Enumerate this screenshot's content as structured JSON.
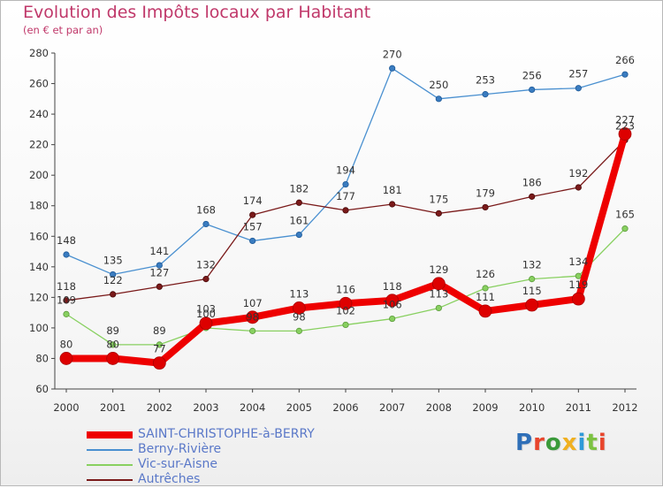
{
  "title": "Evolution des Impôts locaux par Habitant",
  "subtitle": "(en € et par an)",
  "logo": {
    "text": "Proxiti",
    "colors": [
      "#2f6fb8",
      "#e8452c",
      "#3a9a3a",
      "#f0b020",
      "#2f9ad8",
      "#7cc242",
      "#e8452c"
    ]
  },
  "chart_data": {
    "type": "line",
    "categories": [
      "2000",
      "2001",
      "2002",
      "2003",
      "2004",
      "2005",
      "2006",
      "2007",
      "2008",
      "2009",
      "2010",
      "2011",
      "2012"
    ],
    "ylim": [
      60,
      280
    ],
    "yticks": [
      60,
      80,
      100,
      120,
      140,
      160,
      180,
      200,
      220,
      240,
      260,
      280
    ],
    "grid": false,
    "legend_position": "bottom-left",
    "series": [
      {
        "name": "SAINT-CHRISTOPHE-à-BERRY",
        "color": "#ee0000",
        "values": [
          80,
          80,
          77,
          103,
          107,
          113,
          116,
          118,
          129,
          111,
          115,
          119,
          227
        ]
      },
      {
        "name": "Berny-Rivière",
        "color": "#4a90d0",
        "values": [
          148,
          135,
          141,
          168,
          157,
          161,
          194,
          270,
          250,
          253,
          256,
          257,
          266
        ]
      },
      {
        "name": "Vic-sur-Aisne",
        "color": "#88d060",
        "values": [
          109,
          89,
          89,
          100,
          98,
          98,
          102,
          106,
          113,
          126,
          132,
          134,
          165
        ]
      },
      {
        "name": "Autrêches",
        "color": "#7a1a1a",
        "values": [
          118,
          122,
          127,
          132,
          174,
          182,
          177,
          181,
          175,
          179,
          186,
          192,
          223
        ]
      }
    ]
  }
}
